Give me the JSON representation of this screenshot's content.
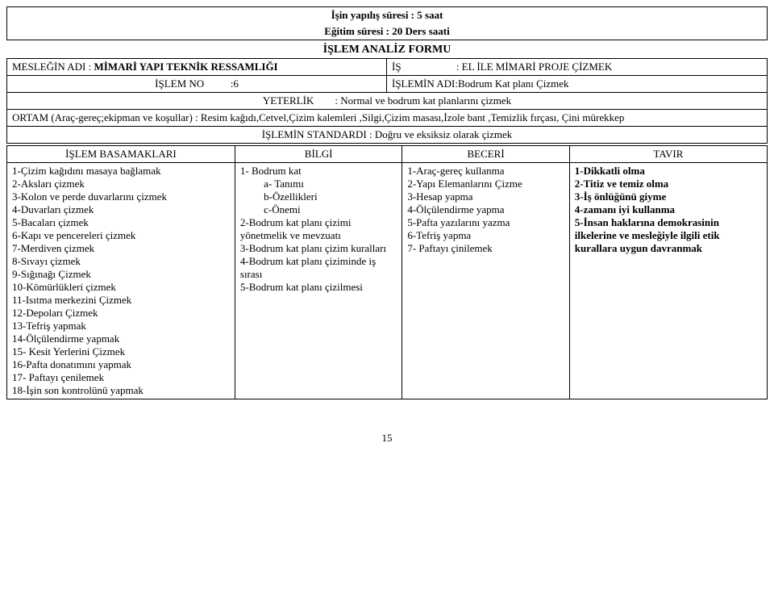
{
  "header": {
    "line1_label": "İşin yapılış süresi  : ",
    "line1_value": "5 saat",
    "line2_label": "Eğitim süresi           : ",
    "line2_value": "20 Ders saati"
  },
  "form_title": "İŞLEM  ANALİZ FORMU",
  "meslegin_adi_label": "MESLEĞİN ADI : ",
  "meslegin_adi_value": "MİMARİ YAPI TEKNİK RESSAMLIĞI",
  "is_label": "İŞ",
  "is_value": "                     : EL İLE MİMARİ PROJE ÇİZMEK",
  "islem_no_label": "İŞLEM NO",
  "islem_no_value": "          :6",
  "islemin_adi_label": "İŞLEMİN ADI:",
  "islemin_adi_value": "Bodrum Kat planı Çizmek",
  "yeterlik_label": "YETERLİK",
  "yeterlik_value": "        : Normal ve bodrum kat planlarını çizmek",
  "ortam_label": "ORTAM (Araç-gereç;ekipman ve koşullar) : ",
  "ortam_value": "Resim kağıdı,Cetvel,Çizim kalemleri ,Silgi,Çizim masası,İzole bant ,Temizlik fırçası, Çini mürekkep",
  "standard_label": "İŞLEMİN STANDARDI : ",
  "standard_value": "Doğru ve eksiksiz olarak çizmek",
  "table": {
    "headers": {
      "basamak": "İŞLEM BASAMAKLARI",
      "bilgi": "BİLGİ",
      "beceri": "BECERİ",
      "tavir": "TAVIR"
    },
    "basamak": [
      "1-Çizim kağıdını masaya bağlamak",
      "2-Aksları çizmek",
      "3-Kolon ve perde duvarlarını çizmek",
      "4-Duvarları çizmek",
      "5-Bacaları çizmek",
      "6-Kapı ve pencereleri çizmek",
      "7-Merdiven çizmek",
      "8-Sıvayı çizmek",
      "9-Sığınağı Çizmek",
      "10-Kömürlükleri çizmek",
      "11-Isıtma merkezini Çizmek",
      "12-Depoları Çizmek",
      "13-Tefriş yapmak",
      "14-Ölçülendirme yapmak",
      "15- Kesit Yerlerini Çizmek",
      "16-Pafta donatımını yapmak",
      "17- Paftayı çenilemek",
      "18-İşin son kontrolünü yapmak"
    ],
    "bilgi": [
      "1- Bodrum kat",
      "         a- Tanımı",
      "         b-Özellikleri",
      "         c-Önemi",
      "2-Bodrum kat planı çizimi yönetmelik ve mevzuatı",
      "3-Bodrum kat planı çizim kuralları",
      "4-Bodrum kat planı çiziminde iş sırası",
      "5-Bodrum kat planı çizilmesi"
    ],
    "beceri": [
      "1-Araç-gereç kullanma",
      "2-Yapı Elemanlarını Çizme",
      "3-Hesap yapma",
      "4-Ölçülendirme yapma",
      "5-Pafta yazılarını yazma",
      "6-Tefriş yapma",
      "7- Paftayı çinilemek"
    ],
    "tavir": [
      "1-Dikkatli olma",
      "2-Titiz ve temiz olma",
      "3-İş önlüğünü giyme",
      "4-zamanı iyi kullanma",
      "5-İnsan haklarına demokrasinin ilkelerine ve mesleğiyle ilgili etik kurallara uygun davranmak"
    ]
  },
  "page_number": "15"
}
